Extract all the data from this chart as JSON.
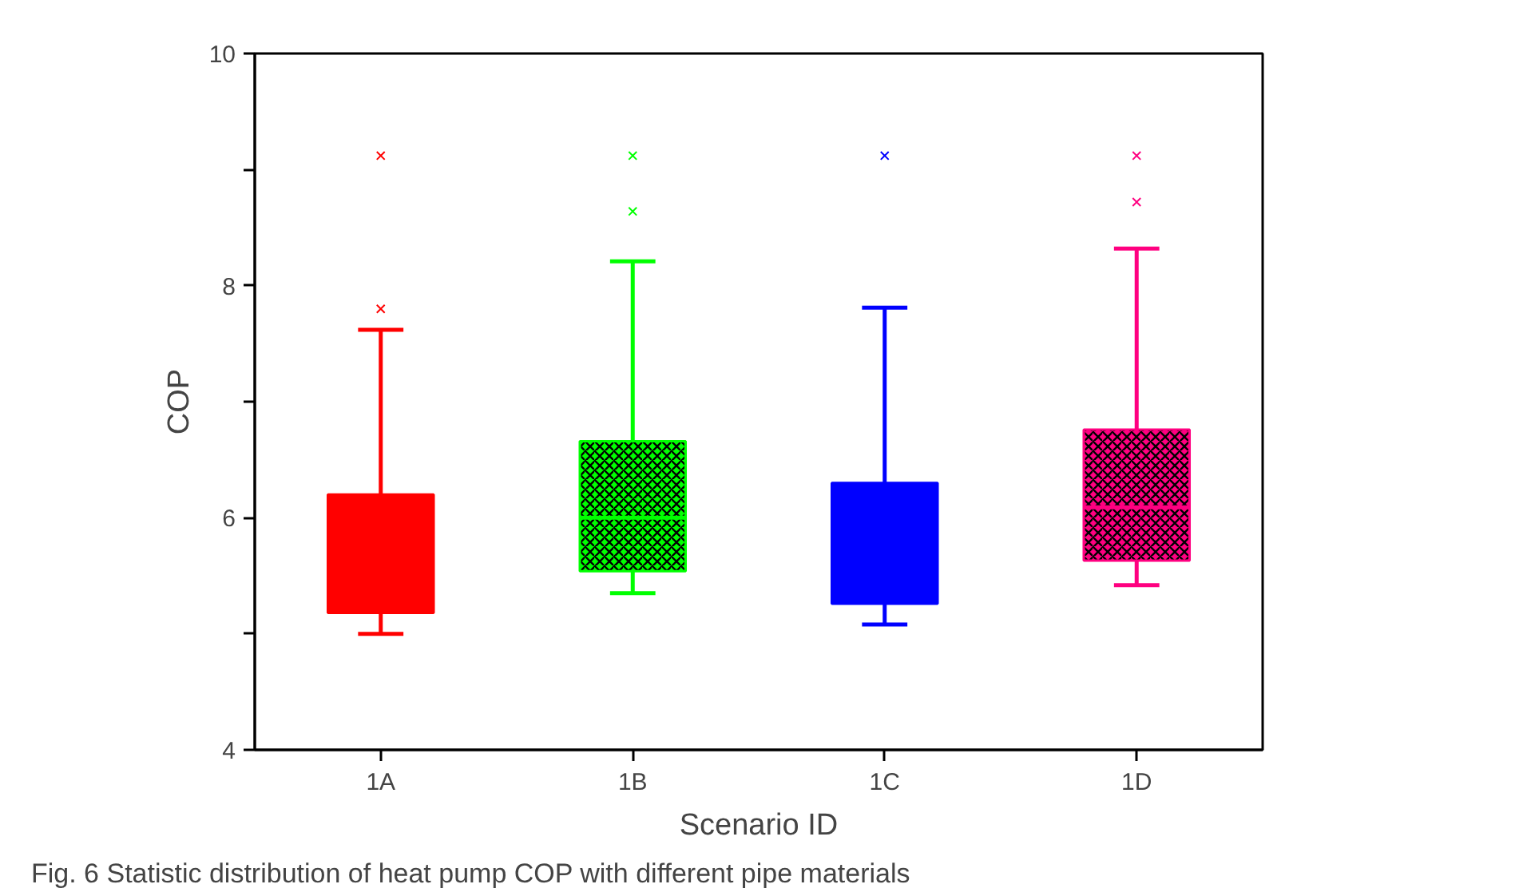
{
  "chart_data": {
    "type": "box",
    "categories": [
      "1A",
      "1B",
      "1C",
      "1D"
    ],
    "colors": [
      "#ff0000",
      "#00ff00",
      "#0000ff",
      "#ff0080"
    ],
    "boxes": [
      {
        "low": 5.0,
        "q1": 5.18,
        "q3": 6.2,
        "high": 7.62,
        "outliers": [
          7.8,
          9.12
        ]
      },
      {
        "low": 5.35,
        "q1": 5.54,
        "median": 6.0,
        "q3": 6.66,
        "high": 8.21,
        "outliers": [
          8.64,
          9.12
        ]
      },
      {
        "low": 5.08,
        "q1": 5.26,
        "q3": 6.3,
        "high": 7.81,
        "outliers": [
          9.12
        ]
      },
      {
        "low": 5.42,
        "q1": 5.63,
        "median": 6.09,
        "q3": 6.76,
        "high": 8.32,
        "outliers": [
          8.72,
          9.12
        ]
      }
    ],
    "xlabel": "Scenario ID",
    "ylabel": "COP",
    "ylim": [
      4,
      10
    ],
    "yticks": [
      4,
      {
        "value": 5,
        "label": null
      },
      6,
      {
        "value": 7,
        "label": null
      },
      8,
      {
        "value": 9,
        "label": null
      },
      10
    ],
    "grid": false,
    "annotations": [
      "Fig. 6  Statistic distribution of heat pump COP with different pipe materials"
    ]
  }
}
